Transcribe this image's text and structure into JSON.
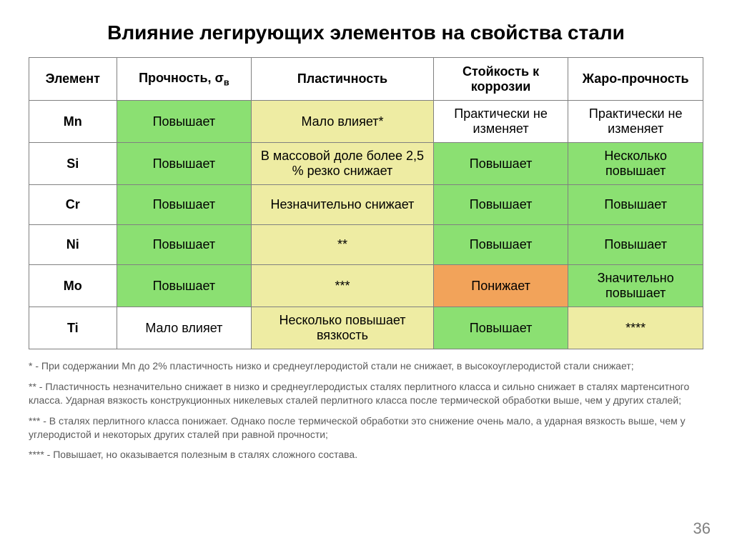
{
  "title": "Влияние легирующих элементов на свойства стали",
  "page_number": "36",
  "colors": {
    "green": "#8be072",
    "yellow": "#eeeca3",
    "orange": "#f2a35a",
    "white": "#ffffff"
  },
  "column_widths": [
    "13%",
    "20%",
    "27%",
    "20%",
    "20%"
  ],
  "columns": [
    {
      "label": "Элемент"
    },
    {
      "label_html": "Прочность, σ<span class=\"sub\">в</span>"
    },
    {
      "label": "Пластичность"
    },
    {
      "label": "Стойкость к коррозии"
    },
    {
      "label": "Жаро-прочность"
    }
  ],
  "rows": [
    {
      "element": "Mn",
      "cells": [
        {
          "text": "Повышает",
          "color": "green"
        },
        {
          "text": "Мало влияет*",
          "color": "yellow"
        },
        {
          "text": "Практически не изменяет",
          "color": "white"
        },
        {
          "text": "Практически не изменяет",
          "color": "white"
        }
      ]
    },
    {
      "element": "Si",
      "cells": [
        {
          "text": "Повышает",
          "color": "green"
        },
        {
          "text": "В массовой доле более 2,5 % резко снижает",
          "color": "yellow"
        },
        {
          "text": "Повышает",
          "color": "green"
        },
        {
          "text": "Несколько повышает",
          "color": "green"
        }
      ]
    },
    {
      "element": "Cr",
      "cells": [
        {
          "text": "Повышает",
          "color": "green"
        },
        {
          "text": "Незначительно снижает",
          "color": "yellow"
        },
        {
          "text": "Повышает",
          "color": "green"
        },
        {
          "text": "Повышает",
          "color": "green"
        }
      ]
    },
    {
      "element": "Ni",
      "cells": [
        {
          "text": "Повышает",
          "color": "green"
        },
        {
          "text": "**",
          "color": "yellow"
        },
        {
          "text": "Повышает",
          "color": "green"
        },
        {
          "text": "Повышает",
          "color": "green"
        }
      ]
    },
    {
      "element": "Mo",
      "cells": [
        {
          "text": "Повышает",
          "color": "green"
        },
        {
          "text": "***",
          "color": "yellow"
        },
        {
          "text": "Понижает",
          "color": "orange"
        },
        {
          "text": "Значительно повышает",
          "color": "green"
        }
      ]
    },
    {
      "element": "Ti",
      "cells": [
        {
          "text": "Мало влияет",
          "color": "white"
        },
        {
          "text": "Несколько повышает вязкость",
          "color": "yellow"
        },
        {
          "text": "Повышает",
          "color": "green"
        },
        {
          "text": "****",
          "color": "yellow"
        }
      ]
    }
  ],
  "footnotes": [
    "* - При содержании Mn до 2% пластичность низко и среднеуглеродистой стали не снижает, в высокоуглеродистой стали снижает;",
    "** - Пластичность незначительно снижает в низко и среднеуглеродистых сталях перлитного класса и сильно снижает в сталях мартенситного класса. Ударная вязкость конструкционных никелевых сталей перлитного класса после термической обработки выше, чем у других сталей;",
    "*** - В сталях перлитного класса понижает. Однако после термической обработки это снижение очень мало, а ударная вязкость выше, чем у углеродистой и некоторых других сталей при равной прочности;",
    "**** - Повышает, но оказывается полезным в сталях сложного состава."
  ]
}
